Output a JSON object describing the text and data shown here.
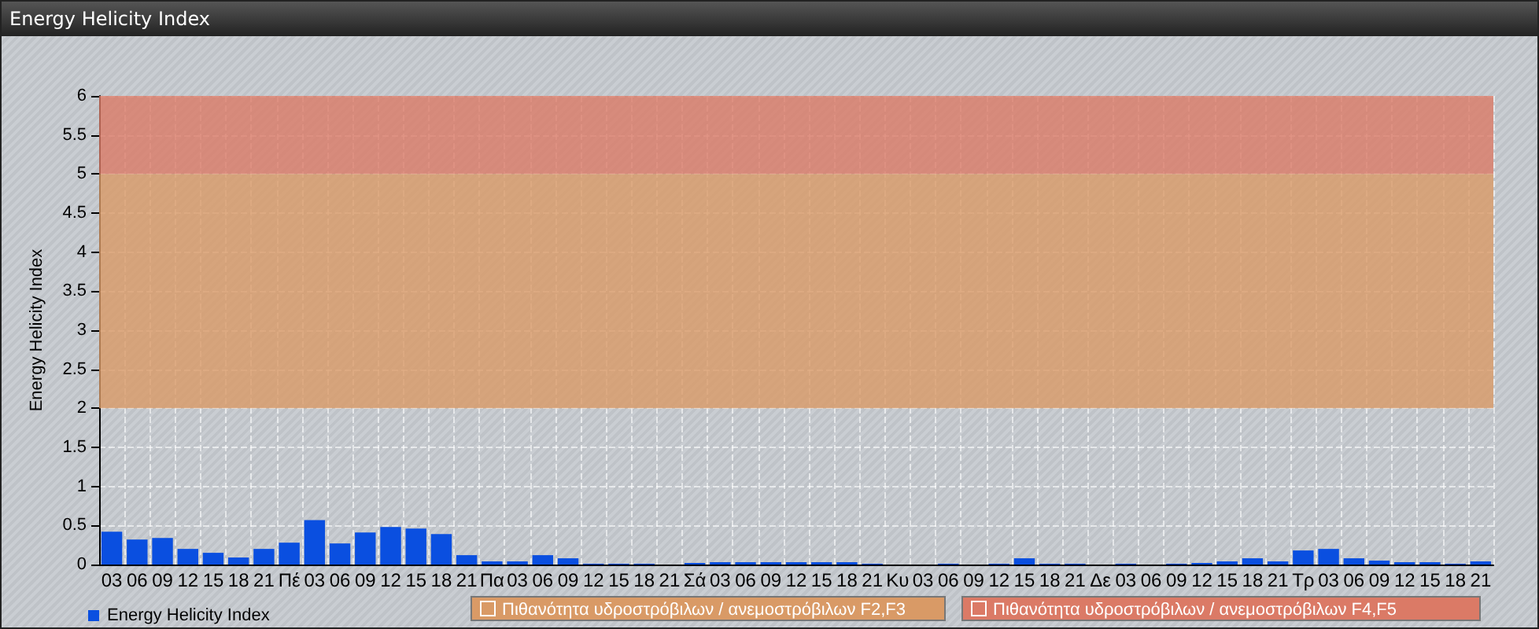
{
  "chart_data": {
    "type": "bar",
    "title": "Energy Helicity Index",
    "ylabel": "Energy Helicity Index",
    "categories": [
      "03",
      "06",
      "09",
      "12",
      "15",
      "18",
      "21",
      "Πέ",
      "03",
      "06",
      "09",
      "12",
      "15",
      "18",
      "21",
      "Πα",
      "03",
      "06",
      "09",
      "12",
      "15",
      "18",
      "21",
      "Σά",
      "03",
      "06",
      "09",
      "12",
      "15",
      "18",
      "21",
      "Κυ",
      "03",
      "06",
      "09",
      "12",
      "15",
      "18",
      "21",
      "Δε",
      "03",
      "06",
      "09",
      "12",
      "15",
      "18",
      "21",
      "Τρ",
      "03",
      "06",
      "09",
      "12",
      "15",
      "18",
      "21"
    ],
    "series": [
      {
        "name": "Energy Helicity Index",
        "color": "#0a4fe0",
        "values": [
          0.42,
          0.32,
          0.34,
          0.2,
          0.15,
          0.09,
          0.2,
          0.28,
          0.57,
          0.27,
          0.41,
          0.48,
          0.46,
          0.39,
          0.12,
          0.04,
          0.04,
          0.12,
          0.08,
          0.01,
          0.01,
          0.01,
          0.0,
          0.02,
          0.03,
          0.03,
          0.03,
          0.03,
          0.03,
          0.03,
          0.01,
          0.0,
          0.0,
          0.01,
          0.0,
          0.01,
          0.08,
          0.01,
          0.01,
          0.0,
          0.01,
          0.0,
          0.01,
          0.02,
          0.04,
          0.08,
          0.04,
          0.18,
          0.2,
          0.08,
          0.05,
          0.03,
          0.03,
          0.01,
          0.04
        ]
      }
    ],
    "ylim": [
      0,
      6
    ],
    "yticks": [
      0,
      0.5,
      1,
      1.5,
      2,
      2.5,
      3,
      3.5,
      4,
      4.5,
      5,
      5.5,
      6
    ],
    "bands": [
      {
        "axis": "y",
        "from": 2,
        "to": 5,
        "label": "Πιθανότητα υδροστρόβιλων / ανεμοστρόβιλων F2,F3",
        "color": "#d99a66"
      },
      {
        "axis": "y",
        "from": 5,
        "to": 6,
        "label": "Πιθανότητα υδροστρόβιλων / ανεμοστρόβιλων F4,F5",
        "color": "#db7a66"
      }
    ],
    "grid": true,
    "legend": "bottom left"
  }
}
